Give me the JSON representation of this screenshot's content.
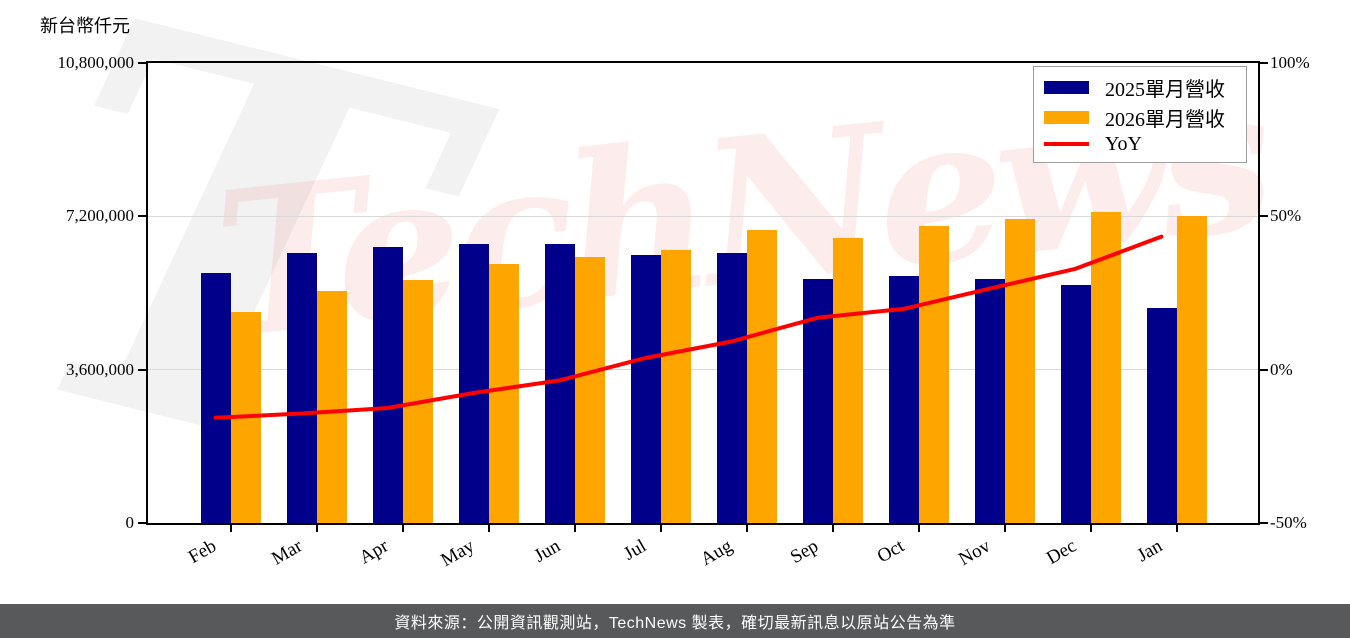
{
  "unit_label": "新台幣仟元",
  "watermark": {
    "text": "TechNews",
    "initial": "T",
    "text_color": "rgba(232,64,64,0.10)",
    "swoosh_color": "rgba(70,70,70,0.07)"
  },
  "legend": {
    "items": [
      {
        "label": "2025單月營收",
        "color": "#00008B",
        "marker": "patch"
      },
      {
        "label": "2026單月營收",
        "color": "#FFA500",
        "marker": "patch"
      },
      {
        "label": "YoY",
        "color": "#FF0000",
        "marker": "line"
      }
    ]
  },
  "footer": {
    "text": "資料來源：公開資訊觀測站，TechNews 製表，確切最新訊息以原站公告為準",
    "background": "#58595b",
    "text_color": "#ffffff"
  },
  "chart_data": {
    "type": "bar",
    "subtype": "grouped bars with overlaid line on secondary axis",
    "title": "",
    "ylabel_left": "新台幣仟元",
    "categories": [
      "Feb",
      "Mar",
      "Apr",
      "May",
      "Jun",
      "Jul",
      "Aug",
      "Sep",
      "Oct",
      "Nov",
      "Dec",
      "Jan"
    ],
    "series": [
      {
        "name": "2025單月營收",
        "type": "bar",
        "axis": "left",
        "color": "#00008B",
        "values": [
          5880000,
          6330000,
          6490000,
          6550000,
          6540000,
          6290000,
          6330000,
          5720000,
          5790000,
          5720000,
          5590000,
          5040000
        ]
      },
      {
        "name": "2026單月營收",
        "type": "bar",
        "axis": "left",
        "color": "#FFA500",
        "values": [
          4960000,
          5450000,
          5710000,
          6080000,
          6250000,
          6400000,
          6880000,
          6700000,
          6980000,
          7130000,
          7310000,
          7200000
        ]
      },
      {
        "name": "YoY",
        "type": "line",
        "axis": "right",
        "color": "#FF0000",
        "unit": "%",
        "values": [
          -15.7,
          -14.3,
          -12.5,
          -7.6,
          -3.5,
          3.8,
          9.2,
          16.9,
          19.8,
          26.4,
          32.9,
          43.4
        ]
      }
    ],
    "left_axis": {
      "range": [
        0,
        10800000
      ],
      "ticks": [
        0,
        3600000,
        7200000,
        10800000
      ],
      "tick_labels": [
        "0",
        "3,600,000",
        "7,200,000",
        "10,800,000"
      ],
      "gridlines": [
        3600000,
        7200000
      ]
    },
    "right_axis": {
      "range": [
        -50,
        100
      ],
      "ticks": [
        -50,
        0,
        50,
        100
      ],
      "tick_labels": [
        "-50%",
        "0%",
        "50%",
        "100%"
      ]
    },
    "grid": "horizontal, light gray",
    "legend_position": "upper right"
  }
}
